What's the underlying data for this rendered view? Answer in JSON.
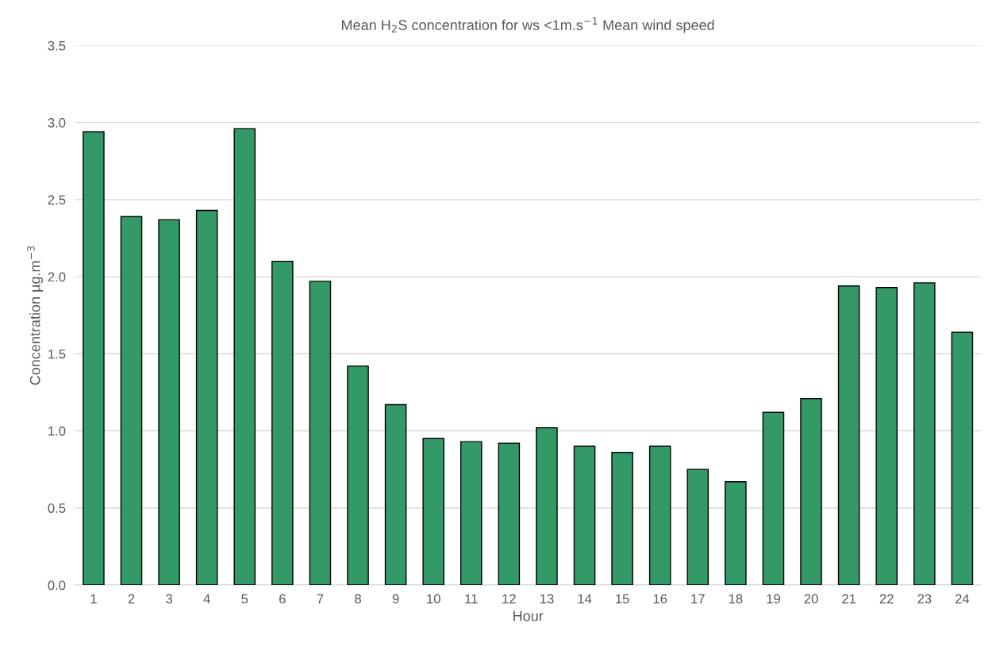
{
  "chart_data": {
    "type": "bar",
    "title": "Mean H$_{2}$S concentration for ws <1m.s$^{−1}$ Mean wind speed",
    "xlabel": "Hour",
    "ylabel": "Concentration µg.m$^{−3}$",
    "categories": [
      "1",
      "2",
      "3",
      "4",
      "5",
      "6",
      "7",
      "8",
      "9",
      "10",
      "11",
      "12",
      "13",
      "14",
      "15",
      "16",
      "17",
      "18",
      "19",
      "20",
      "21",
      "22",
      "23",
      "24"
    ],
    "values": [
      2.94,
      2.39,
      2.37,
      2.43,
      2.96,
      2.1,
      1.97,
      1.42,
      1.17,
      0.95,
      0.93,
      0.92,
      1.02,
      0.9,
      0.86,
      0.9,
      0.75,
      0.67,
      1.12,
      1.21,
      1.94,
      1.93,
      1.96,
      1.64
    ],
    "color": "#339966",
    "ylim": [
      0,
      3.5
    ],
    "yticks": [
      {
        "value": 0,
        "label": "0.0"
      },
      {
        "value": 0.5,
        "label": "0.5"
      },
      {
        "value": 1,
        "label": "1.0"
      },
      {
        "value": 1.5,
        "label": "1.5"
      },
      {
        "value": 2,
        "label": "2.0"
      },
      {
        "value": 2.5,
        "label": "2.5"
      },
      {
        "value": 3,
        "label": "3.0"
      },
      {
        "value": 3.5,
        "label": "3.5"
      }
    ],
    "grid": "y",
    "legend": false
  }
}
